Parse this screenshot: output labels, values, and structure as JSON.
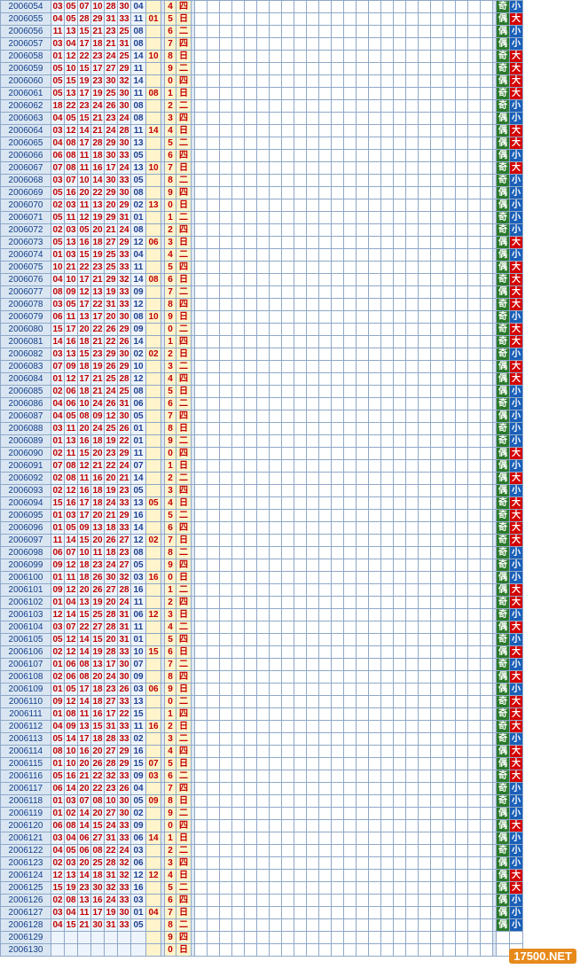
{
  "watermark": "17500.NET",
  "colors": {
    "red_ball": "#c00000",
    "blue_ball": "#1d3f8f",
    "ball_dot": "#1f45d6",
    "odd": "#2a7a2a",
    "big": "#d40000"
  },
  "rows": [
    {
      "issue": "2006054",
      "reds": [
        "03",
        "05",
        "07",
        "10",
        "28",
        "30"
      ],
      "blue": "04",
      "tail": "",
      "week": "四",
      "w": "4"
    },
    {
      "issue": "2006055",
      "reds": [
        "04",
        "05",
        "28",
        "29",
        "31",
        "33"
      ],
      "blue": "11",
      "tail": "01",
      "week": "日",
      "w": "5"
    },
    {
      "issue": "2006056",
      "reds": [
        "11",
        "13",
        "15",
        "21",
        "23",
        "25"
      ],
      "blue": "08",
      "tail": "",
      "week": "二",
      "w": "6"
    },
    {
      "issue": "2006057",
      "reds": [
        "03",
        "04",
        "17",
        "18",
        "21",
        "31"
      ],
      "blue": "08",
      "tail": "",
      "week": "四",
      "w": "7"
    },
    {
      "issue": "2006058",
      "reds": [
        "01",
        "12",
        "22",
        "23",
        "24",
        "25"
      ],
      "blue": "14",
      "tail": "10",
      "week": "日",
      "w": "8"
    },
    {
      "issue": "2006059",
      "reds": [
        "05",
        "10",
        "15",
        "17",
        "27",
        "29"
      ],
      "blue": "11",
      "tail": "",
      "week": "二",
      "w": "9"
    },
    {
      "issue": "2006060",
      "reds": [
        "05",
        "15",
        "19",
        "23",
        "30",
        "32"
      ],
      "blue": "14",
      "tail": "",
      "week": "四",
      "w": "0"
    },
    {
      "issue": "2006061",
      "reds": [
        "05",
        "13",
        "17",
        "19",
        "25",
        "30"
      ],
      "blue": "11",
      "tail": "08",
      "week": "日",
      "w": "1"
    },
    {
      "issue": "2006062",
      "reds": [
        "18",
        "22",
        "23",
        "24",
        "26",
        "30"
      ],
      "blue": "08",
      "tail": "",
      "week": "二",
      "w": "2"
    },
    {
      "issue": "2006063",
      "reds": [
        "04",
        "05",
        "15",
        "21",
        "23",
        "24"
      ],
      "blue": "08",
      "tail": "",
      "week": "四",
      "w": "3"
    },
    {
      "issue": "2006064",
      "reds": [
        "03",
        "12",
        "14",
        "21",
        "24",
        "28"
      ],
      "blue": "11",
      "tail": "14",
      "week": "日",
      "w": "4"
    },
    {
      "issue": "2006065",
      "reds": [
        "04",
        "08",
        "17",
        "28",
        "29",
        "30"
      ],
      "blue": "13",
      "tail": "",
      "week": "二",
      "w": "5"
    },
    {
      "issue": "2006066",
      "reds": [
        "06",
        "08",
        "11",
        "18",
        "30",
        "33"
      ],
      "blue": "05",
      "tail": "",
      "week": "四",
      "w": "6"
    },
    {
      "issue": "2006067",
      "reds": [
        "07",
        "08",
        "11",
        "16",
        "17",
        "24"
      ],
      "blue": "13",
      "tail": "10",
      "week": "日",
      "w": "7"
    },
    {
      "issue": "2006068",
      "reds": [
        "03",
        "07",
        "10",
        "14",
        "30",
        "33"
      ],
      "blue": "05",
      "tail": "",
      "week": "二",
      "w": "8"
    },
    {
      "issue": "2006069",
      "reds": [
        "05",
        "16",
        "20",
        "22",
        "29",
        "30"
      ],
      "blue": "08",
      "tail": "",
      "week": "四",
      "w": "9"
    },
    {
      "issue": "2006070",
      "reds": [
        "02",
        "03",
        "11",
        "13",
        "20",
        "29"
      ],
      "blue": "02",
      "tail": "13",
      "week": "日",
      "w": "0"
    },
    {
      "issue": "2006071",
      "reds": [
        "05",
        "11",
        "12",
        "19",
        "29",
        "31"
      ],
      "blue": "01",
      "tail": "",
      "week": "二",
      "w": "1"
    },
    {
      "issue": "2006072",
      "reds": [
        "02",
        "03",
        "05",
        "20",
        "21",
        "24"
      ],
      "blue": "08",
      "tail": "",
      "week": "四",
      "w": "2"
    },
    {
      "issue": "2006073",
      "reds": [
        "05",
        "13",
        "16",
        "18",
        "27",
        "29"
      ],
      "blue": "12",
      "tail": "06",
      "week": "日",
      "w": "3"
    },
    {
      "issue": "2006074",
      "reds": [
        "01",
        "03",
        "15",
        "19",
        "25",
        "33"
      ],
      "blue": "04",
      "tail": "",
      "week": "二",
      "w": "4"
    },
    {
      "issue": "2006075",
      "reds": [
        "10",
        "21",
        "22",
        "23",
        "25",
        "33"
      ],
      "blue": "11",
      "tail": "",
      "week": "四",
      "w": "5"
    },
    {
      "issue": "2006076",
      "reds": [
        "04",
        "10",
        "17",
        "21",
        "29",
        "32"
      ],
      "blue": "14",
      "tail": "08",
      "week": "日",
      "w": "6"
    },
    {
      "issue": "2006077",
      "reds": [
        "08",
        "09",
        "12",
        "13",
        "19",
        "33"
      ],
      "blue": "09",
      "tail": "",
      "week": "二",
      "w": "7"
    },
    {
      "issue": "2006078",
      "reds": [
        "03",
        "05",
        "17",
        "22",
        "31",
        "33"
      ],
      "blue": "12",
      "tail": "",
      "week": "四",
      "w": "8"
    },
    {
      "issue": "2006079",
      "reds": [
        "06",
        "11",
        "13",
        "17",
        "20",
        "30"
      ],
      "blue": "08",
      "tail": "10",
      "week": "日",
      "w": "9"
    },
    {
      "issue": "2006080",
      "reds": [
        "15",
        "17",
        "20",
        "22",
        "26",
        "29"
      ],
      "blue": "09",
      "tail": "",
      "week": "二",
      "w": "0"
    },
    {
      "issue": "2006081",
      "reds": [
        "14",
        "16",
        "18",
        "21",
        "22",
        "26"
      ],
      "blue": "14",
      "tail": "",
      "week": "四",
      "w": "1"
    },
    {
      "issue": "2006082",
      "reds": [
        "03",
        "13",
        "15",
        "23",
        "29",
        "30"
      ],
      "blue": "02",
      "tail": "02",
      "week": "日",
      "w": "2"
    },
    {
      "issue": "2006083",
      "reds": [
        "07",
        "09",
        "18",
        "19",
        "26",
        "29"
      ],
      "blue": "10",
      "tail": "",
      "week": "二",
      "w": "3"
    },
    {
      "issue": "2006084",
      "reds": [
        "01",
        "12",
        "17",
        "21",
        "25",
        "28"
      ],
      "blue": "12",
      "tail": "",
      "week": "四",
      "w": "4"
    },
    {
      "issue": "2006085",
      "reds": [
        "02",
        "06",
        "18",
        "21",
        "24",
        "25"
      ],
      "blue": "08",
      "tail": "",
      "week": "日",
      "w": "5"
    },
    {
      "issue": "2006086",
      "reds": [
        "04",
        "06",
        "10",
        "24",
        "26",
        "31"
      ],
      "blue": "06",
      "tail": "",
      "week": "二",
      "w": "6"
    },
    {
      "issue": "2006087",
      "reds": [
        "04",
        "05",
        "08",
        "09",
        "12",
        "30"
      ],
      "blue": "05",
      "tail": "",
      "week": "四",
      "w": "7"
    },
    {
      "issue": "2006088",
      "reds": [
        "03",
        "11",
        "20",
        "24",
        "25",
        "26"
      ],
      "blue": "01",
      "tail": "",
      "week": "日",
      "w": "8"
    },
    {
      "issue": "2006089",
      "reds": [
        "01",
        "13",
        "16",
        "18",
        "19",
        "22"
      ],
      "blue": "01",
      "tail": "",
      "week": "二",
      "w": "9"
    },
    {
      "issue": "2006090",
      "reds": [
        "02",
        "11",
        "15",
        "20",
        "23",
        "29"
      ],
      "blue": "11",
      "tail": "",
      "week": "四",
      "w": "0"
    },
    {
      "issue": "2006091",
      "reds": [
        "07",
        "08",
        "12",
        "21",
        "22",
        "24"
      ],
      "blue": "07",
      "tail": "",
      "week": "日",
      "w": "1"
    },
    {
      "issue": "2006092",
      "reds": [
        "02",
        "08",
        "11",
        "16",
        "20",
        "21"
      ],
      "blue": "14",
      "tail": "",
      "week": "二",
      "w": "2"
    },
    {
      "issue": "2006093",
      "reds": [
        "02",
        "12",
        "16",
        "18",
        "19",
        "23"
      ],
      "blue": "05",
      "tail": "",
      "week": "四",
      "w": "3"
    },
    {
      "issue": "2006094",
      "reds": [
        "15",
        "16",
        "17",
        "18",
        "24",
        "33"
      ],
      "blue": "13",
      "tail": "05",
      "week": "日",
      "w": "4"
    },
    {
      "issue": "2006095",
      "reds": [
        "01",
        "03",
        "17",
        "20",
        "21",
        "29"
      ],
      "blue": "16",
      "tail": "",
      "week": "二",
      "w": "5"
    },
    {
      "issue": "2006096",
      "reds": [
        "01",
        "05",
        "09",
        "13",
        "18",
        "33"
      ],
      "blue": "14",
      "tail": "",
      "week": "四",
      "w": "6"
    },
    {
      "issue": "2006097",
      "reds": [
        "11",
        "14",
        "15",
        "20",
        "26",
        "27"
      ],
      "blue": "12",
      "tail": "02",
      "week": "日",
      "w": "7"
    },
    {
      "issue": "2006098",
      "reds": [
        "06",
        "07",
        "10",
        "11",
        "18",
        "23"
      ],
      "blue": "08",
      "tail": "",
      "week": "二",
      "w": "8"
    },
    {
      "issue": "2006099",
      "reds": [
        "09",
        "12",
        "18",
        "23",
        "24",
        "27"
      ],
      "blue": "05",
      "tail": "",
      "week": "四",
      "w": "9"
    },
    {
      "issue": "2006100",
      "reds": [
        "01",
        "11",
        "18",
        "26",
        "30",
        "32"
      ],
      "blue": "03",
      "tail": "16",
      "week": "日",
      "w": "0"
    },
    {
      "issue": "2006101",
      "reds": [
        "09",
        "12",
        "20",
        "26",
        "27",
        "28"
      ],
      "blue": "16",
      "tail": "",
      "week": "二",
      "w": "1"
    },
    {
      "issue": "2006102",
      "reds": [
        "01",
        "04",
        "13",
        "19",
        "20",
        "24"
      ],
      "blue": "11",
      "tail": "",
      "week": "四",
      "w": "2"
    },
    {
      "issue": "2006103",
      "reds": [
        "12",
        "14",
        "15",
        "25",
        "28",
        "31"
      ],
      "blue": "06",
      "tail": "12",
      "week": "日",
      "w": "3"
    },
    {
      "issue": "2006104",
      "reds": [
        "03",
        "07",
        "22",
        "27",
        "28",
        "31"
      ],
      "blue": "11",
      "tail": "",
      "week": "二",
      "w": "4"
    },
    {
      "issue": "2006105",
      "reds": [
        "05",
        "12",
        "14",
        "15",
        "20",
        "31"
      ],
      "blue": "01",
      "tail": "",
      "week": "四",
      "w": "5"
    },
    {
      "issue": "2006106",
      "reds": [
        "02",
        "12",
        "14",
        "19",
        "28",
        "33"
      ],
      "blue": "10",
      "tail": "15",
      "week": "日",
      "w": "6"
    },
    {
      "issue": "2006107",
      "reds": [
        "01",
        "06",
        "08",
        "13",
        "17",
        "30"
      ],
      "blue": "07",
      "tail": "",
      "week": "二",
      "w": "7"
    },
    {
      "issue": "2006108",
      "reds": [
        "02",
        "06",
        "08",
        "20",
        "24",
        "30"
      ],
      "blue": "09",
      "tail": "",
      "week": "四",
      "w": "8"
    },
    {
      "issue": "2006109",
      "reds": [
        "01",
        "05",
        "17",
        "18",
        "23",
        "26"
      ],
      "blue": "03",
      "tail": "06",
      "week": "日",
      "w": "9"
    },
    {
      "issue": "2006110",
      "reds": [
        "09",
        "12",
        "14",
        "18",
        "27",
        "33"
      ],
      "blue": "13",
      "tail": "",
      "week": "二",
      "w": "0"
    },
    {
      "issue": "2006111",
      "reds": [
        "01",
        "08",
        "11",
        "16",
        "17",
        "22"
      ],
      "blue": "15",
      "tail": "",
      "week": "四",
      "w": "1"
    },
    {
      "issue": "2006112",
      "reds": [
        "04",
        "09",
        "13",
        "15",
        "31",
        "33"
      ],
      "blue": "11",
      "tail": "16",
      "week": "日",
      "w": "2"
    },
    {
      "issue": "2006113",
      "reds": [
        "05",
        "14",
        "17",
        "18",
        "28",
        "33"
      ],
      "blue": "02",
      "tail": "",
      "week": "二",
      "w": "3"
    },
    {
      "issue": "2006114",
      "reds": [
        "08",
        "10",
        "16",
        "20",
        "27",
        "29"
      ],
      "blue": "16",
      "tail": "",
      "week": "四",
      "w": "4"
    },
    {
      "issue": "2006115",
      "reds": [
        "01",
        "10",
        "20",
        "26",
        "28",
        "29"
      ],
      "blue": "15",
      "tail": "07",
      "week": "日",
      "w": "5"
    },
    {
      "issue": "2006116",
      "reds": [
        "05",
        "16",
        "21",
        "22",
        "32",
        "33"
      ],
      "blue": "09",
      "tail": "03",
      "week": "二",
      "w": "6"
    },
    {
      "issue": "2006117",
      "reds": [
        "06",
        "14",
        "20",
        "22",
        "23",
        "26"
      ],
      "blue": "04",
      "tail": "",
      "week": "四",
      "w": "7"
    },
    {
      "issue": "2006118",
      "reds": [
        "01",
        "03",
        "07",
        "08",
        "10",
        "30"
      ],
      "blue": "05",
      "tail": "09",
      "week": "日",
      "w": "8"
    },
    {
      "issue": "2006119",
      "reds": [
        "01",
        "02",
        "14",
        "20",
        "27",
        "30"
      ],
      "blue": "02",
      "tail": "",
      "week": "二",
      "w": "9"
    },
    {
      "issue": "2006120",
      "reds": [
        "06",
        "08",
        "14",
        "15",
        "24",
        "33"
      ],
      "blue": "09",
      "tail": "",
      "week": "四",
      "w": "0"
    },
    {
      "issue": "2006121",
      "reds": [
        "03",
        "04",
        "06",
        "27",
        "31",
        "33"
      ],
      "blue": "06",
      "tail": "14",
      "week": "日",
      "w": "1"
    },
    {
      "issue": "2006122",
      "reds": [
        "04",
        "05",
        "06",
        "08",
        "22",
        "24"
      ],
      "blue": "03",
      "tail": "",
      "week": "二",
      "w": "2"
    },
    {
      "issue": "2006123",
      "reds": [
        "02",
        "03",
        "20",
        "25",
        "28",
        "32"
      ],
      "blue": "06",
      "tail": "",
      "week": "四",
      "w": "3"
    },
    {
      "issue": "2006124",
      "reds": [
        "12",
        "13",
        "14",
        "18",
        "31",
        "32"
      ],
      "blue": "12",
      "tail": "12",
      "week": "日",
      "w": "4"
    },
    {
      "issue": "2006125",
      "reds": [
        "15",
        "19",
        "23",
        "30",
        "32",
        "33"
      ],
      "blue": "16",
      "tail": "",
      "week": "二",
      "w": "5"
    },
    {
      "issue": "2006126",
      "reds": [
        "02",
        "08",
        "13",
        "16",
        "24",
        "33"
      ],
      "blue": "03",
      "tail": "",
      "week": "四",
      "w": "6"
    },
    {
      "issue": "2006127",
      "reds": [
        "03",
        "04",
        "11",
        "17",
        "19",
        "30"
      ],
      "blue": "01",
      "tail": "04",
      "week": "日",
      "w": "7"
    },
    {
      "issue": "2006128",
      "reds": [
        "04",
        "15",
        "21",
        "30",
        "31",
        "33"
      ],
      "blue": "05",
      "tail": "",
      "week": "二",
      "w": "8"
    },
    {
      "issue": "2006129",
      "reds": [
        "",
        "",
        "",
        "",
        "",
        ""
      ],
      "blue": "",
      "tail": "",
      "week": "四",
      "w": "9"
    },
    {
      "issue": "2006130",
      "reds": [
        "",
        "",
        "",
        "",
        "",
        ""
      ],
      "blue": "",
      "tail": "",
      "week": "日",
      "w": "0"
    }
  ],
  "miss_cols": 24,
  "oe_labels": [
    "偶",
    "奇"
  ],
  "bs_labels": [
    "大",
    "小"
  ]
}
